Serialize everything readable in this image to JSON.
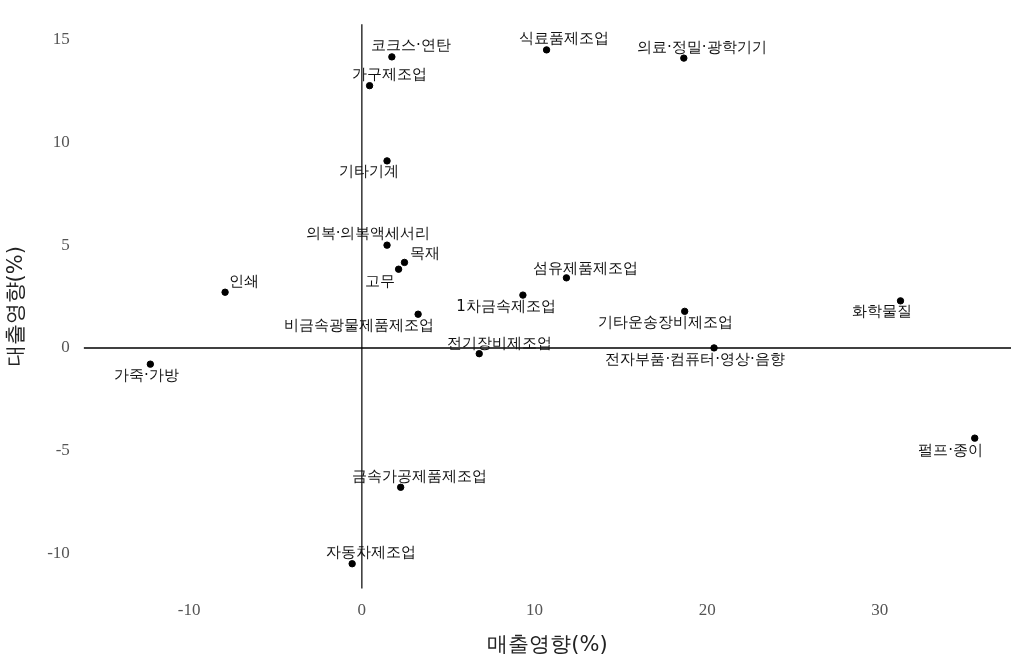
{
  "chart_data": {
    "type": "scatter",
    "xlabel": "매출영향(%)",
    "ylabel": "대출영향(%)",
    "xlim": [
      -16.1,
      37.6
    ],
    "ylim": [
      -11.7,
      15.75
    ],
    "xticks": [
      -10,
      0,
      10,
      20,
      30
    ],
    "yticks": [
      -10,
      -5,
      0,
      5,
      10,
      15
    ],
    "grid": false,
    "legend": false,
    "marker": "circle",
    "series": [
      {
        "color": "#000000",
        "x": [
          1.74,
          10.7,
          18.65,
          0.45,
          1.46,
          1.46,
          2.47,
          2.13,
          -7.92,
          11.85,
          9.33,
          3.26,
          18.7,
          31.2,
          6.8,
          20.4,
          -12.25,
          35.5,
          2.25,
          -0.56
        ],
        "values": [
          14.16,
          14.5,
          14.1,
          12.76,
          9.1,
          5.0,
          4.16,
          3.83,
          2.71,
          3.41,
          2.57,
          1.64,
          1.78,
          2.29,
          -0.28,
          0,
          -0.79,
          -4.39,
          -6.78,
          -10.5
        ]
      }
    ],
    "ref_lines": [
      {
        "axis": "x",
        "value": 0,
        "color": "#333333"
      },
      {
        "axis": "y",
        "value": 0,
        "color": "#000000"
      }
    ],
    "annotations": [
      {
        "text": "코크스·연탄",
        "x": 1.74,
        "y": 14.16
      },
      {
        "text": "식료품제조업",
        "x": 10.7,
        "y": 14.5
      },
      {
        "text": "의료·정밀·광학기기",
        "x": 18.65,
        "y": 14.1
      },
      {
        "text": "가구제조업",
        "x": 0.45,
        "y": 12.76
      },
      {
        "text": "기타기계",
        "x": 1.46,
        "y": 9.1
      },
      {
        "text": "의복·의복액세서리",
        "x": 1.46,
        "y": 5.0
      },
      {
        "text": "목재",
        "x": 2.47,
        "y": 4.16
      },
      {
        "text": "고무",
        "x": 2.13,
        "y": 3.83
      },
      {
        "text": "인쇄",
        "x": -7.92,
        "y": 2.71
      },
      {
        "text": "섬유제품제조업",
        "x": 11.85,
        "y": 3.41
      },
      {
        "text": "1차금속제조업",
        "x": 9.33,
        "y": 2.57
      },
      {
        "text": "비금속광물제품제조업",
        "x": 3.26,
        "y": 1.64
      },
      {
        "text": "기타운송장비제조업",
        "x": 18.7,
        "y": 1.78
      },
      {
        "text": "화학물질",
        "x": 31.2,
        "y": 2.29
      },
      {
        "text": "전기장비제조업",
        "x": 6.8,
        "y": -0.28
      },
      {
        "text": "전자부품·컴퓨터·영상·음향",
        "x": 20.4,
        "y": 0
      },
      {
        "text": "가죽·가방",
        "x": -12.25,
        "y": -0.79
      },
      {
        "text": "펄프·종이",
        "x": 35.5,
        "y": -4.39
      },
      {
        "text": "금속가공제품제조업",
        "x": 2.25,
        "y": -6.78
      },
      {
        "text": "자동차제조업",
        "x": -0.56,
        "y": -10.5
      }
    ]
  }
}
